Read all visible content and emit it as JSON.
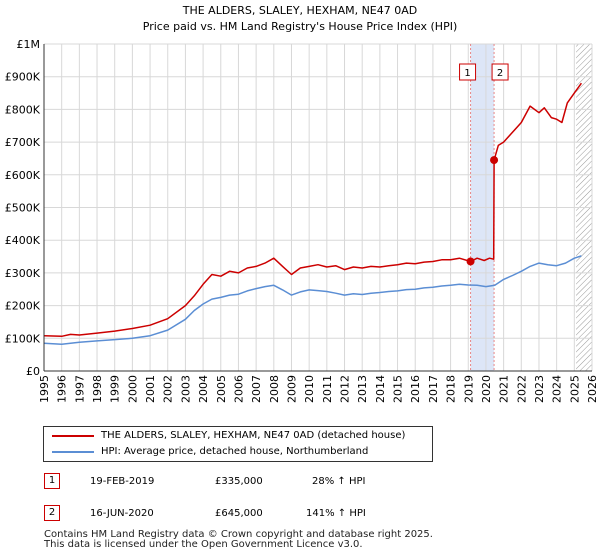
{
  "colors": {
    "property_line": "#cc0000",
    "hpi_line": "#5b8ed4",
    "shade": "#dde6f7",
    "marker_line": "#e88888",
    "grid": "#d8d8d8",
    "hatch": "#999999"
  },
  "chart_data": {
    "type": "line",
    "title": "THE ALDERS, SLALEY, HEXHAM, NE47 0AD",
    "subtitle": "Price paid vs. HM Land Registry's House Price Index (HPI)",
    "x_range": [
      1995,
      2026
    ],
    "y_range": [
      0,
      1000000
    ],
    "x_ticks": [
      "1995",
      "1996",
      "1997",
      "1998",
      "1999",
      "2000",
      "2001",
      "2002",
      "2003",
      "2004",
      "2005",
      "2006",
      "2007",
      "2008",
      "2009",
      "2010",
      "2011",
      "2012",
      "2013",
      "2014",
      "2015",
      "2016",
      "2017",
      "2018",
      "2019",
      "2020",
      "2021",
      "2022",
      "2023",
      "2024",
      "2025",
      "2026"
    ],
    "y_ticks": [
      {
        "value": 0,
        "label": "£0"
      },
      {
        "value": 100000,
        "label": "£100K"
      },
      {
        "value": 200000,
        "label": "£200K"
      },
      {
        "value": 300000,
        "label": "£300K"
      },
      {
        "value": 400000,
        "label": "£400K"
      },
      {
        "value": 500000,
        "label": "£500K"
      },
      {
        "value": 600000,
        "label": "£600K"
      },
      {
        "value": 700000,
        "label": "£700K"
      },
      {
        "value": 800000,
        "label": "£800K"
      },
      {
        "value": 900000,
        "label": "£900K"
      },
      {
        "value": 1000000,
        "label": "£1M"
      }
    ],
    "shaded_period": [
      2019.13,
      2020.46
    ],
    "forecast_hatch_from": 2025.1,
    "series": [
      {
        "name": "THE ALDERS, SLALEY, HEXHAM, NE47 0AD (detached house)",
        "color": "#cc0000",
        "points": [
          [
            1995,
            108000
          ],
          [
            1996,
            106000
          ],
          [
            1996.5,
            112000
          ],
          [
            1997,
            110000
          ],
          [
            1998,
            116000
          ],
          [
            1999,
            122000
          ],
          [
            2000,
            130000
          ],
          [
            2001,
            140000
          ],
          [
            2002,
            160000
          ],
          [
            2003,
            200000
          ],
          [
            2003.5,
            230000
          ],
          [
            2004,
            265000
          ],
          [
            2004.5,
            295000
          ],
          [
            2005,
            290000
          ],
          [
            2005.5,
            305000
          ],
          [
            2006,
            300000
          ],
          [
            2006.5,
            315000
          ],
          [
            2007,
            320000
          ],
          [
            2007.5,
            330000
          ],
          [
            2008,
            345000
          ],
          [
            2008.5,
            320000
          ],
          [
            2009,
            295000
          ],
          [
            2009.5,
            315000
          ],
          [
            2010,
            320000
          ],
          [
            2010.5,
            325000
          ],
          [
            2011,
            318000
          ],
          [
            2011.5,
            322000
          ],
          [
            2012,
            310000
          ],
          [
            2012.5,
            318000
          ],
          [
            2013,
            315000
          ],
          [
            2013.5,
            320000
          ],
          [
            2014,
            318000
          ],
          [
            2014.5,
            322000
          ],
          [
            2015,
            325000
          ],
          [
            2015.5,
            330000
          ],
          [
            2016,
            328000
          ],
          [
            2016.5,
            333000
          ],
          [
            2017,
            335000
          ],
          [
            2017.5,
            340000
          ],
          [
            2018,
            340000
          ],
          [
            2018.5,
            345000
          ],
          [
            2019.13,
            335000
          ],
          [
            2019.5,
            345000
          ],
          [
            2019.9,
            338000
          ],
          [
            2020.2,
            345000
          ],
          [
            2020.44,
            342000
          ],
          [
            2020.46,
            645000
          ],
          [
            2020.7,
            690000
          ],
          [
            2021,
            700000
          ],
          [
            2021.5,
            730000
          ],
          [
            2022,
            760000
          ],
          [
            2022.5,
            810000
          ],
          [
            2023,
            790000
          ],
          [
            2023.3,
            805000
          ],
          [
            2023.7,
            775000
          ],
          [
            2024,
            770000
          ],
          [
            2024.3,
            760000
          ],
          [
            2024.6,
            820000
          ],
          [
            2025,
            850000
          ],
          [
            2025.4,
            880000
          ]
        ]
      },
      {
        "name": "HPI: Average price, detached house, Northumberland",
        "color": "#5b8ed4",
        "points": [
          [
            1995,
            85000
          ],
          [
            1996,
            82000
          ],
          [
            1997,
            88000
          ],
          [
            1998,
            92000
          ],
          [
            1999,
            96000
          ],
          [
            2000,
            100000
          ],
          [
            2001,
            108000
          ],
          [
            2002,
            125000
          ],
          [
            2003,
            158000
          ],
          [
            2003.5,
            185000
          ],
          [
            2004,
            205000
          ],
          [
            2004.5,
            220000
          ],
          [
            2005,
            225000
          ],
          [
            2005.5,
            232000
          ],
          [
            2006,
            235000
          ],
          [
            2006.5,
            245000
          ],
          [
            2007,
            252000
          ],
          [
            2007.5,
            258000
          ],
          [
            2008,
            262000
          ],
          [
            2008.5,
            248000
          ],
          [
            2009,
            232000
          ],
          [
            2009.5,
            242000
          ],
          [
            2010,
            248000
          ],
          [
            2010.5,
            246000
          ],
          [
            2011,
            243000
          ],
          [
            2011.5,
            238000
          ],
          [
            2012,
            232000
          ],
          [
            2012.5,
            236000
          ],
          [
            2013,
            234000
          ],
          [
            2013.5,
            238000
          ],
          [
            2014,
            240000
          ],
          [
            2014.5,
            243000
          ],
          [
            2015,
            245000
          ],
          [
            2015.5,
            249000
          ],
          [
            2016,
            250000
          ],
          [
            2016.5,
            254000
          ],
          [
            2017,
            256000
          ],
          [
            2017.5,
            260000
          ],
          [
            2018,
            262000
          ],
          [
            2018.5,
            265000
          ],
          [
            2019,
            263000
          ],
          [
            2019.5,
            262000
          ],
          [
            2020,
            258000
          ],
          [
            2020.5,
            262000
          ],
          [
            2021,
            280000
          ],
          [
            2021.5,
            292000
          ],
          [
            2022,
            305000
          ],
          [
            2022.5,
            320000
          ],
          [
            2023,
            330000
          ],
          [
            2023.5,
            325000
          ],
          [
            2024,
            322000
          ],
          [
            2024.5,
            330000
          ],
          [
            2025,
            345000
          ],
          [
            2025.4,
            352000
          ]
        ]
      }
    ],
    "sales": [
      {
        "label": "1",
        "x": 2019.13,
        "y": 335000
      },
      {
        "label": "2",
        "x": 2020.46,
        "y": 645000
      }
    ]
  },
  "legend": {
    "property": "THE ALDERS, SLALEY, HEXHAM, NE47 0AD (detached house)",
    "hpi": "HPI: Average price, detached house, Northumberland"
  },
  "transactions": [
    {
      "num": "1",
      "date": "19-FEB-2019",
      "price": "£335,000",
      "hpi": "28% ↑ HPI"
    },
    {
      "num": "2",
      "date": "16-JUN-2020",
      "price": "£645,000",
      "hpi": "141% ↑ HPI"
    }
  ],
  "footer": {
    "line1": "Contains HM Land Registry data © Crown copyright and database right 2025.",
    "line2": "This data is licensed under the Open Government Licence v3.0."
  }
}
